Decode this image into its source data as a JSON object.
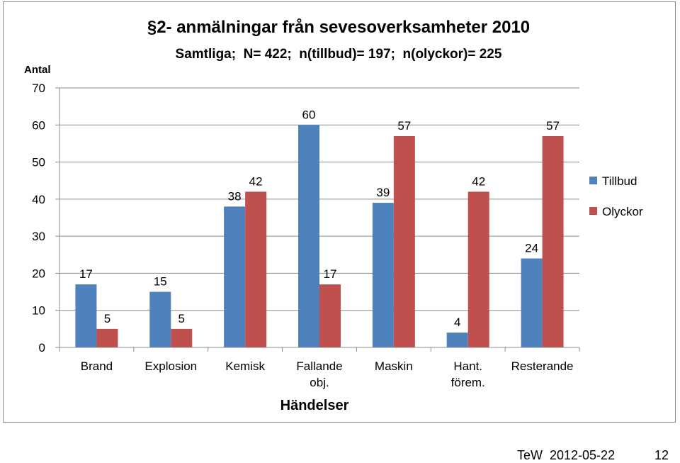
{
  "chart_data": {
    "type": "bar",
    "title": "§2- anmälningar från sevesoverksamheter 2010",
    "subtitle": "Samtliga;  N= 422;  n(tillbud)= 197;  n(olyckor)= 225",
    "xlabel": "Händelser",
    "ylabel": "Antal",
    "ylim": [
      0,
      70
    ],
    "yticks": [
      0,
      10,
      20,
      30,
      40,
      50,
      60,
      70
    ],
    "grid": true,
    "legend_position": "right",
    "categories": [
      [
        "Brand"
      ],
      [
        "Explosion"
      ],
      [
        "Kemisk"
      ],
      [
        "Fallande",
        "obj."
      ],
      [
        "Maskin"
      ],
      [
        "Hant.",
        "förem."
      ],
      [
        "Resterande"
      ]
    ],
    "series": [
      {
        "name": "Tillbud",
        "color": "#4f81bd",
        "values": [
          17,
          15,
          38,
          60,
          39,
          4,
          24
        ]
      },
      {
        "name": "Olyckor",
        "color": "#c0504d",
        "values": [
          5,
          5,
          42,
          17,
          57,
          42,
          57
        ]
      }
    ]
  },
  "footer": {
    "author_date": "TeW  2012-05-22",
    "page_number": "12"
  }
}
